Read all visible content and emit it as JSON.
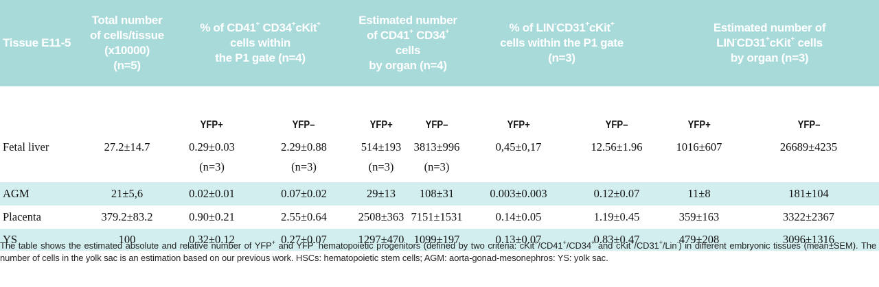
{
  "headers": {
    "tissue": "Tissue E11-5",
    "total": "Total number\nof cells/tissue\n(x10000)\n(n=5)",
    "pct_cd41_a": "% of CD41",
    "pct_cd41_b": " CD34",
    "pct_cd41_c": "cKit",
    "pct_cd41_d": "\ncells within\nthe P1 gate (n=4)",
    "est_cd41_a": "Estimated number\nof CD41",
    "est_cd41_b": " CD34",
    "est_cd41_c": " cells\nby organ (n=4)",
    "pct_lin_a": "% of LIN",
    "pct_lin_b": "CD31",
    "pct_lin_c": "cKit",
    "pct_lin_d": "\ncells within the P1 gate\n(n=3)",
    "est_lin_a": "Estimated number of\nLIN",
    "est_lin_b": "CD31",
    "est_lin_c": "cKit",
    "est_lin_d": " cells\nby organ (n=3)",
    "sup_plus": "+",
    "sup_minus": "-"
  },
  "subheaders": {
    "yfp_plus": "YFP+",
    "yfp_minus": "YFP–"
  },
  "rows": [
    {
      "tissue": "Fetal liver",
      "total": "27.2±14.7",
      "pct_cd41_plus": "0.29±0.03",
      "pct_cd41_minus": "2.29±0.88",
      "est_cd41_plus": "514±193",
      "est_cd41_minus": "3813±996",
      "pct_lin_plus": "0,45±0,17",
      "pct_lin_minus": "12.56±1.96",
      "est_lin_plus": "1016±607",
      "est_lin_minus": "26689±4235"
    },
    {
      "tissue": "",
      "total": "",
      "pct_cd41_plus": "(n=3)",
      "pct_cd41_minus": "(n=3)",
      "est_cd41_plus": "(n=3)",
      "est_cd41_minus": "(n=3)",
      "pct_lin_plus": "",
      "pct_lin_minus": "",
      "est_lin_plus": "",
      "est_lin_minus": ""
    },
    {
      "tissue": "AGM",
      "total": "21±5,6",
      "pct_cd41_plus": "0.02±0.01",
      "pct_cd41_minus": "0.07±0.02",
      "est_cd41_plus": "29±13",
      "est_cd41_minus": "108±31",
      "pct_lin_plus": "0.003±0.003",
      "pct_lin_minus": "0.12±0.07",
      "est_lin_plus": "11±8",
      "est_lin_minus": "181±104"
    },
    {
      "tissue": "Placenta",
      "total": "379.2±83.2",
      "pct_cd41_plus": "0.90±0.21",
      "pct_cd41_minus": "2.55±0.64",
      "est_cd41_plus": "2508±363",
      "est_cd41_minus": "7151±1531",
      "pct_lin_plus": "0.14±0.05",
      "pct_lin_minus": "1.19±0.45",
      "est_lin_plus": "359±163",
      "est_lin_minus": "3322±2367"
    },
    {
      "tissue": "YS",
      "total": "100",
      "pct_cd41_plus": "0.32±0.12",
      "pct_cd41_minus": "0.27±0.07",
      "est_cd41_plus": "1297±470",
      "est_cd41_minus": "1099±197",
      "pct_lin_plus": "0.13±0.07",
      "pct_lin_minus": "0.83±0.47",
      "est_lin_plus": "479±208",
      "est_lin_minus": "3096±1316"
    }
  ],
  "caption": {
    "p1": "The table shows the estimated absolute and relative number of YFP",
    "p2": " and YFP",
    "p3": " hematopoietic progenitors (defined by two criteria: cKit",
    "p4": "/CD41",
    "p5": "/CD34",
    "p6": " and cKit",
    "p7": "/CD31",
    "p8": "/Lin",
    "p9": ") in different embryonic tissues (mean±SEM). The number of cells in the yolk sac is an estimation based on our previous work. HSCs: hematopoietic stem cells; AGM: aorta-gonad-mesonephros: YS: yolk sac."
  },
  "colors": {
    "header_bg": "#a9dada",
    "band_bg": "#d3eeee",
    "header_text": "#ffffff"
  }
}
